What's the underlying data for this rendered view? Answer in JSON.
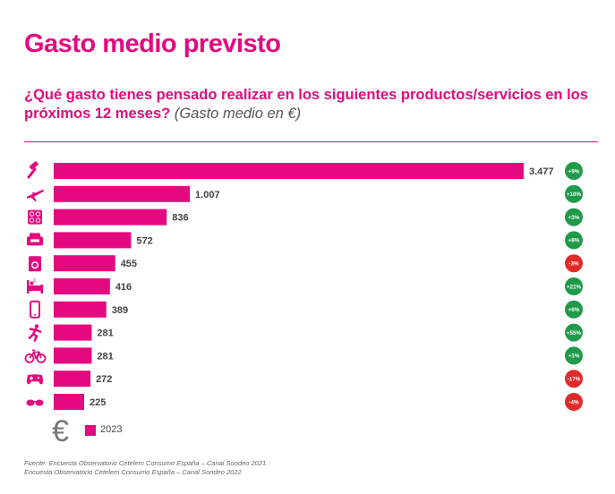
{
  "header": {
    "title": "Gasto medio previsto",
    "subtitle": "¿Qué gasto tienes pensado realizar en los siguientes productos/servicios en los próximos 12 meses?",
    "subtitle_note": "(Gasto medio en €)"
  },
  "chart_data": {
    "type": "bar",
    "orientation": "horizontal",
    "unit": "€",
    "categories": [
      "Reformas",
      "Viajes",
      "Electrodomésticos",
      "Muebles",
      "Electrodomésticos de lavado",
      "Descanso",
      "Telefonía",
      "Deporte",
      "Bicicletas",
      "Videojuegos",
      "Óptica"
    ],
    "icons": [
      "paint-roller-icon",
      "airplane-icon",
      "stove-icon",
      "sofa-icon",
      "washing-machine-icon",
      "bed-icon",
      "smartphone-icon",
      "runner-icon",
      "bicycle-icon",
      "gamepad-icon",
      "sunglasses-icon"
    ],
    "values": [
      3477,
      1007,
      836,
      572,
      455,
      416,
      389,
      281,
      281,
      272,
      225
    ],
    "value_labels": [
      "3.477",
      "1.007",
      "836",
      "572",
      "455",
      "416",
      "389",
      "281",
      "281",
      "272",
      "225"
    ],
    "changes": [
      "+9%",
      "+10%",
      "+3%",
      "+8%",
      "-3%",
      "+21%",
      "+6%",
      "+55%",
      "+1%",
      "-17%",
      "-4%"
    ],
    "change_colors": [
      "#1f9a4a",
      "#1f9a4a",
      "#1f9a4a",
      "#1f9a4a",
      "#e02b2b",
      "#1f9a4a",
      "#1f9a4a",
      "#1f9a4a",
      "#1f9a4a",
      "#e02b2b",
      "#e02b2b"
    ],
    "series_name": "2023",
    "xlim": [
      0,
      3477
    ]
  },
  "legend": {
    "symbol": "€",
    "label": "2023"
  },
  "colors": {
    "accent": "#e5097f",
    "positive": "#1f9a4a",
    "negative": "#e02b2b"
  },
  "footnote": {
    "line1": "Fuente: Encuesta Observatorio Cetelem Consumo España – Canal Sondeo 2021.",
    "line2": "Encuesta Observatorio Cetelem Consumo España – Canal Sondeo 2022"
  }
}
